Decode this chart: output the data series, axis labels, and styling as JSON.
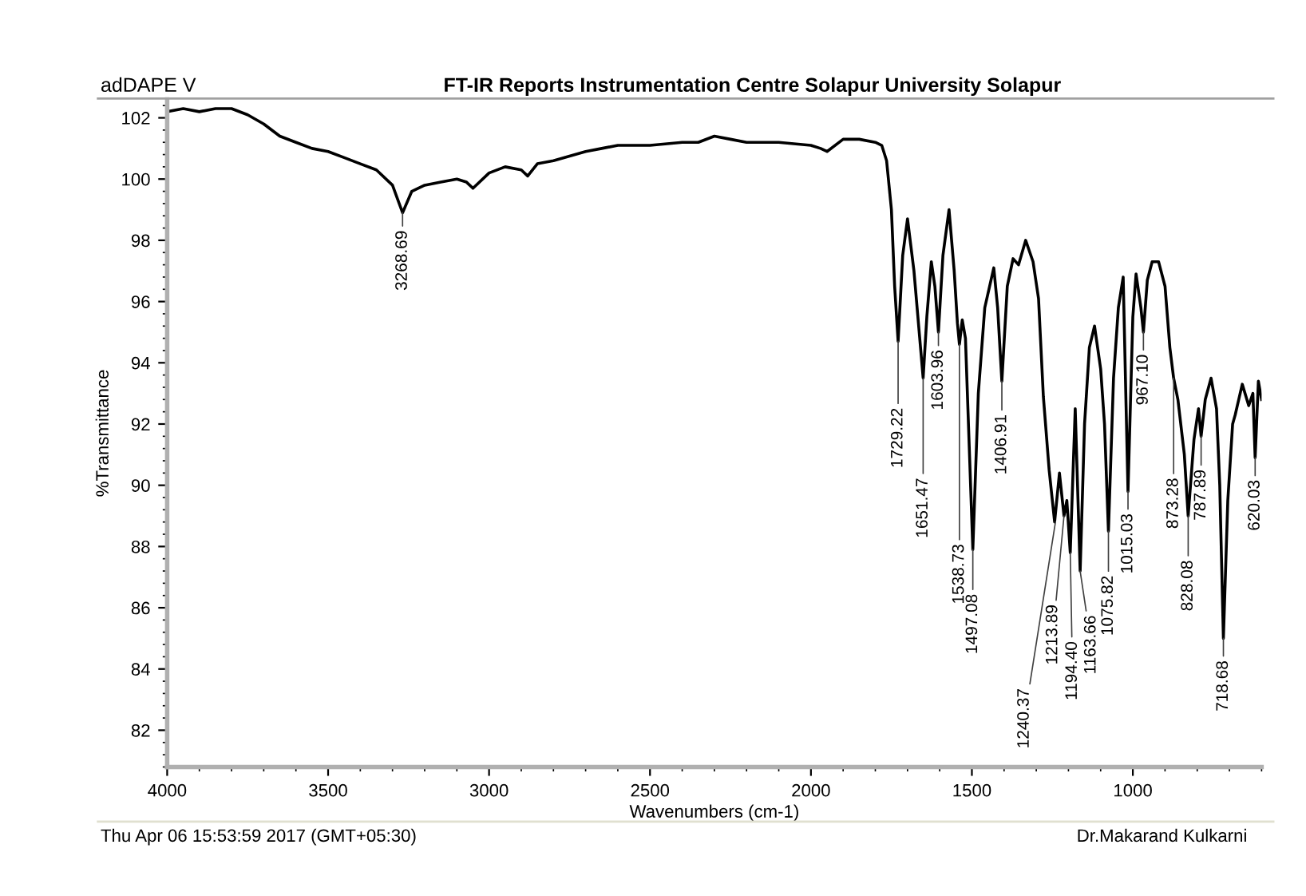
{
  "chart_data": {
    "type": "line",
    "title": "FT-IR Reports Instrumentation Centre Solapur University Solapur",
    "subtitle": "adDAPE V",
    "xlabel": "Wavenumbers (cm-1)",
    "ylabel": "%Transmittance",
    "xlim": [
      4000,
      600
    ],
    "xticks": [
      4000,
      3500,
      3000,
      2500,
      2000,
      1500,
      1000
    ],
    "ylim": [
      80.8,
      102.6
    ],
    "yticks": [
      82,
      84,
      86,
      88,
      90,
      92,
      94,
      96,
      98,
      100,
      102
    ],
    "grid": false,
    "legend": false,
    "marker": "none",
    "line_style": "solid",
    "series": [
      {
        "color": "#000000",
        "x": [
          4000,
          3950,
          3900,
          3850,
          3800,
          3750,
          3700,
          3650,
          3600,
          3550,
          3500,
          3450,
          3400,
          3350,
          3300,
          3268.69,
          3240,
          3200,
          3150,
          3100,
          3070,
          3050,
          3000,
          2950,
          2900,
          2880,
          2850,
          2800,
          2700,
          2650,
          2600,
          2500,
          2400,
          2350,
          2300,
          2250,
          2200,
          2100,
          2000,
          1970,
          1950,
          1900,
          1850,
          1800,
          1780,
          1765,
          1750,
          1740,
          1729.22,
          1715,
          1700,
          1680,
          1651.47,
          1640,
          1626,
          1615,
          1603.96,
          1590,
          1571,
          1555,
          1545,
          1538.73,
          1530,
          1520,
          1497.08,
          1480,
          1460,
          1432,
          1420,
          1406.91,
          1390,
          1372,
          1355,
          1333,
          1310,
          1293,
          1278,
          1260,
          1243,
          1228,
          1213.89,
          1205,
          1194.4,
          1179,
          1163.66,
          1150,
          1135,
          1119,
          1100,
          1088,
          1075.82,
          1060,
          1045,
          1030,
          1015.03,
          1000,
          990,
          975,
          967.1,
          955,
          940,
          920,
          900,
          885,
          873.28,
          860,
          840,
          828.08,
          810,
          796,
          787.89,
          775,
          757,
          740,
          730,
          718.68,
          705,
          690,
          682,
          660,
          640,
          627,
          620.03,
          610,
          600
        ],
        "values": [
          102.2,
          102.3,
          102.2,
          102.3,
          102.3,
          102.1,
          101.8,
          101.4,
          101.2,
          101.0,
          100.9,
          100.7,
          100.5,
          100.3,
          99.8,
          98.9,
          99.6,
          99.8,
          99.9,
          100.0,
          99.9,
          99.7,
          100.2,
          100.4,
          100.3,
          100.1,
          100.5,
          100.6,
          100.9,
          101.0,
          101.1,
          101.1,
          101.2,
          101.2,
          101.4,
          101.3,
          101.2,
          101.2,
          101.1,
          101.0,
          100.9,
          101.3,
          101.3,
          101.2,
          101.1,
          100.6,
          99.0,
          96.5,
          94.7,
          97.5,
          98.7,
          97.0,
          93.5,
          95.5,
          97.3,
          96.5,
          95.0,
          97.5,
          99.0,
          97.0,
          95.3,
          94.6,
          95.4,
          94.8,
          87.9,
          93.0,
          95.8,
          97.1,
          95.8,
          93.4,
          96.5,
          97.4,
          97.2,
          98.0,
          97.3,
          96.1,
          92.9,
          90.5,
          88.8,
          90.4,
          89.0,
          89.5,
          87.8,
          92.5,
          87.2,
          92.0,
          94.5,
          95.2,
          93.8,
          92.0,
          88.5,
          93.5,
          95.8,
          96.8,
          89.8,
          95.5,
          96.9,
          95.8,
          95.0,
          96.7,
          97.3,
          97.3,
          96.5,
          94.5,
          93.5,
          92.8,
          91.0,
          89.0,
          91.5,
          92.5,
          91.6,
          92.8,
          93.5,
          92.5,
          90.0,
          85.0,
          89.5,
          92.0,
          92.3,
          93.3,
          92.6,
          93.0,
          90.9,
          93.4,
          92.8
        ]
      }
    ],
    "annotations": [
      {
        "text": "3268.69",
        "x": 3268.69,
        "y": 98.9
      },
      {
        "text": "1729.22",
        "x": 1729.22,
        "y": 94.7
      },
      {
        "text": "1651.47",
        "x": 1651.47,
        "y": 93.5
      },
      {
        "text": "1603.96",
        "x": 1603.96,
        "y": 95.0
      },
      {
        "text": "1538.73",
        "x": 1538.73,
        "y": 94.6
      },
      {
        "text": "1497.08",
        "x": 1497.08,
        "y": 87.9
      },
      {
        "text": "1406.91",
        "x": 1406.91,
        "y": 93.4
      },
      {
        "text": "1240.37",
        "x": 1240.37,
        "y": 88.8
      },
      {
        "text": "1213.89",
        "x": 1213.89,
        "y": 89.0
      },
      {
        "text": "1194.40",
        "x": 1194.4,
        "y": 87.8
      },
      {
        "text": "1163.66",
        "x": 1163.66,
        "y": 87.2
      },
      {
        "text": "1075.82",
        "x": 1075.82,
        "y": 88.5
      },
      {
        "text": "1015.03",
        "x": 1015.03,
        "y": 89.8
      },
      {
        "text": "967.10",
        "x": 967.1,
        "y": 95.0
      },
      {
        "text": "873.28",
        "x": 873.28,
        "y": 93.5
      },
      {
        "text": "828.08",
        "x": 828.08,
        "y": 89.0
      },
      {
        "text": "787.89",
        "x": 787.89,
        "y": 91.6
      },
      {
        "text": "718.68",
        "x": 718.68,
        "y": 85.0
      },
      {
        "text": "620.03",
        "x": 620.03,
        "y": 90.9
      },
      "Thu Apr 06 15:53:59 2017 (GMT+05:30)",
      "Dr.Makarand Kulkarni"
    ]
  }
}
